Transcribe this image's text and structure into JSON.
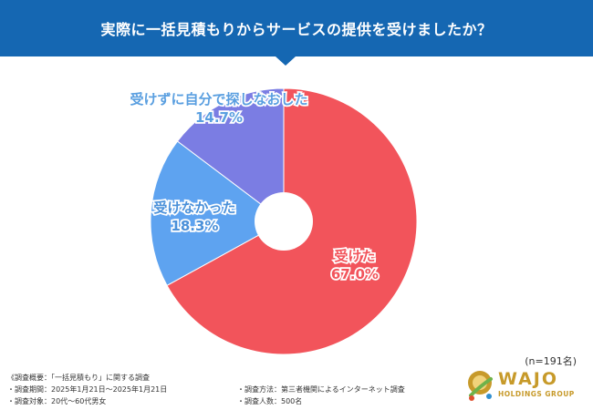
{
  "header": {
    "title": "実際に一括見積もりからサービスの提供を受けましたか？",
    "background": "#1567b2"
  },
  "chart_data": {
    "type": "pie",
    "donut": true,
    "start": "top",
    "direction": "clockwise",
    "slices": [
      {
        "label": "受けた",
        "value": 67.0,
        "value_text": "67.0%",
        "color": "#f2545b",
        "label_color": "#f2545b"
      },
      {
        "label": "受けなかった",
        "value": 18.3,
        "value_text": "18.3%",
        "color": "#5ea3f0",
        "label_color": "#4a90d9"
      },
      {
        "label": "受けずに自分で探しなおした",
        "value": 14.7,
        "value_text": "14.7%",
        "color": "#7b7de3",
        "label_color": "#5a9fe0"
      }
    ]
  },
  "sample": "(n=191名)",
  "survey": {
    "overview": "《調査概要：「一括見積もり」に関する調査",
    "period": "・調査期間：2025年1月21日～2025年1月21日",
    "method": "・調査方法：第三者機関によるインターネット調査",
    "target": "・調査対象：20代～60代男女",
    "count": "・調査人数：500名"
  },
  "logo": {
    "word": "WAJO",
    "sub": "HOLDINGS GROUP",
    "color": "#c79a2a"
  }
}
